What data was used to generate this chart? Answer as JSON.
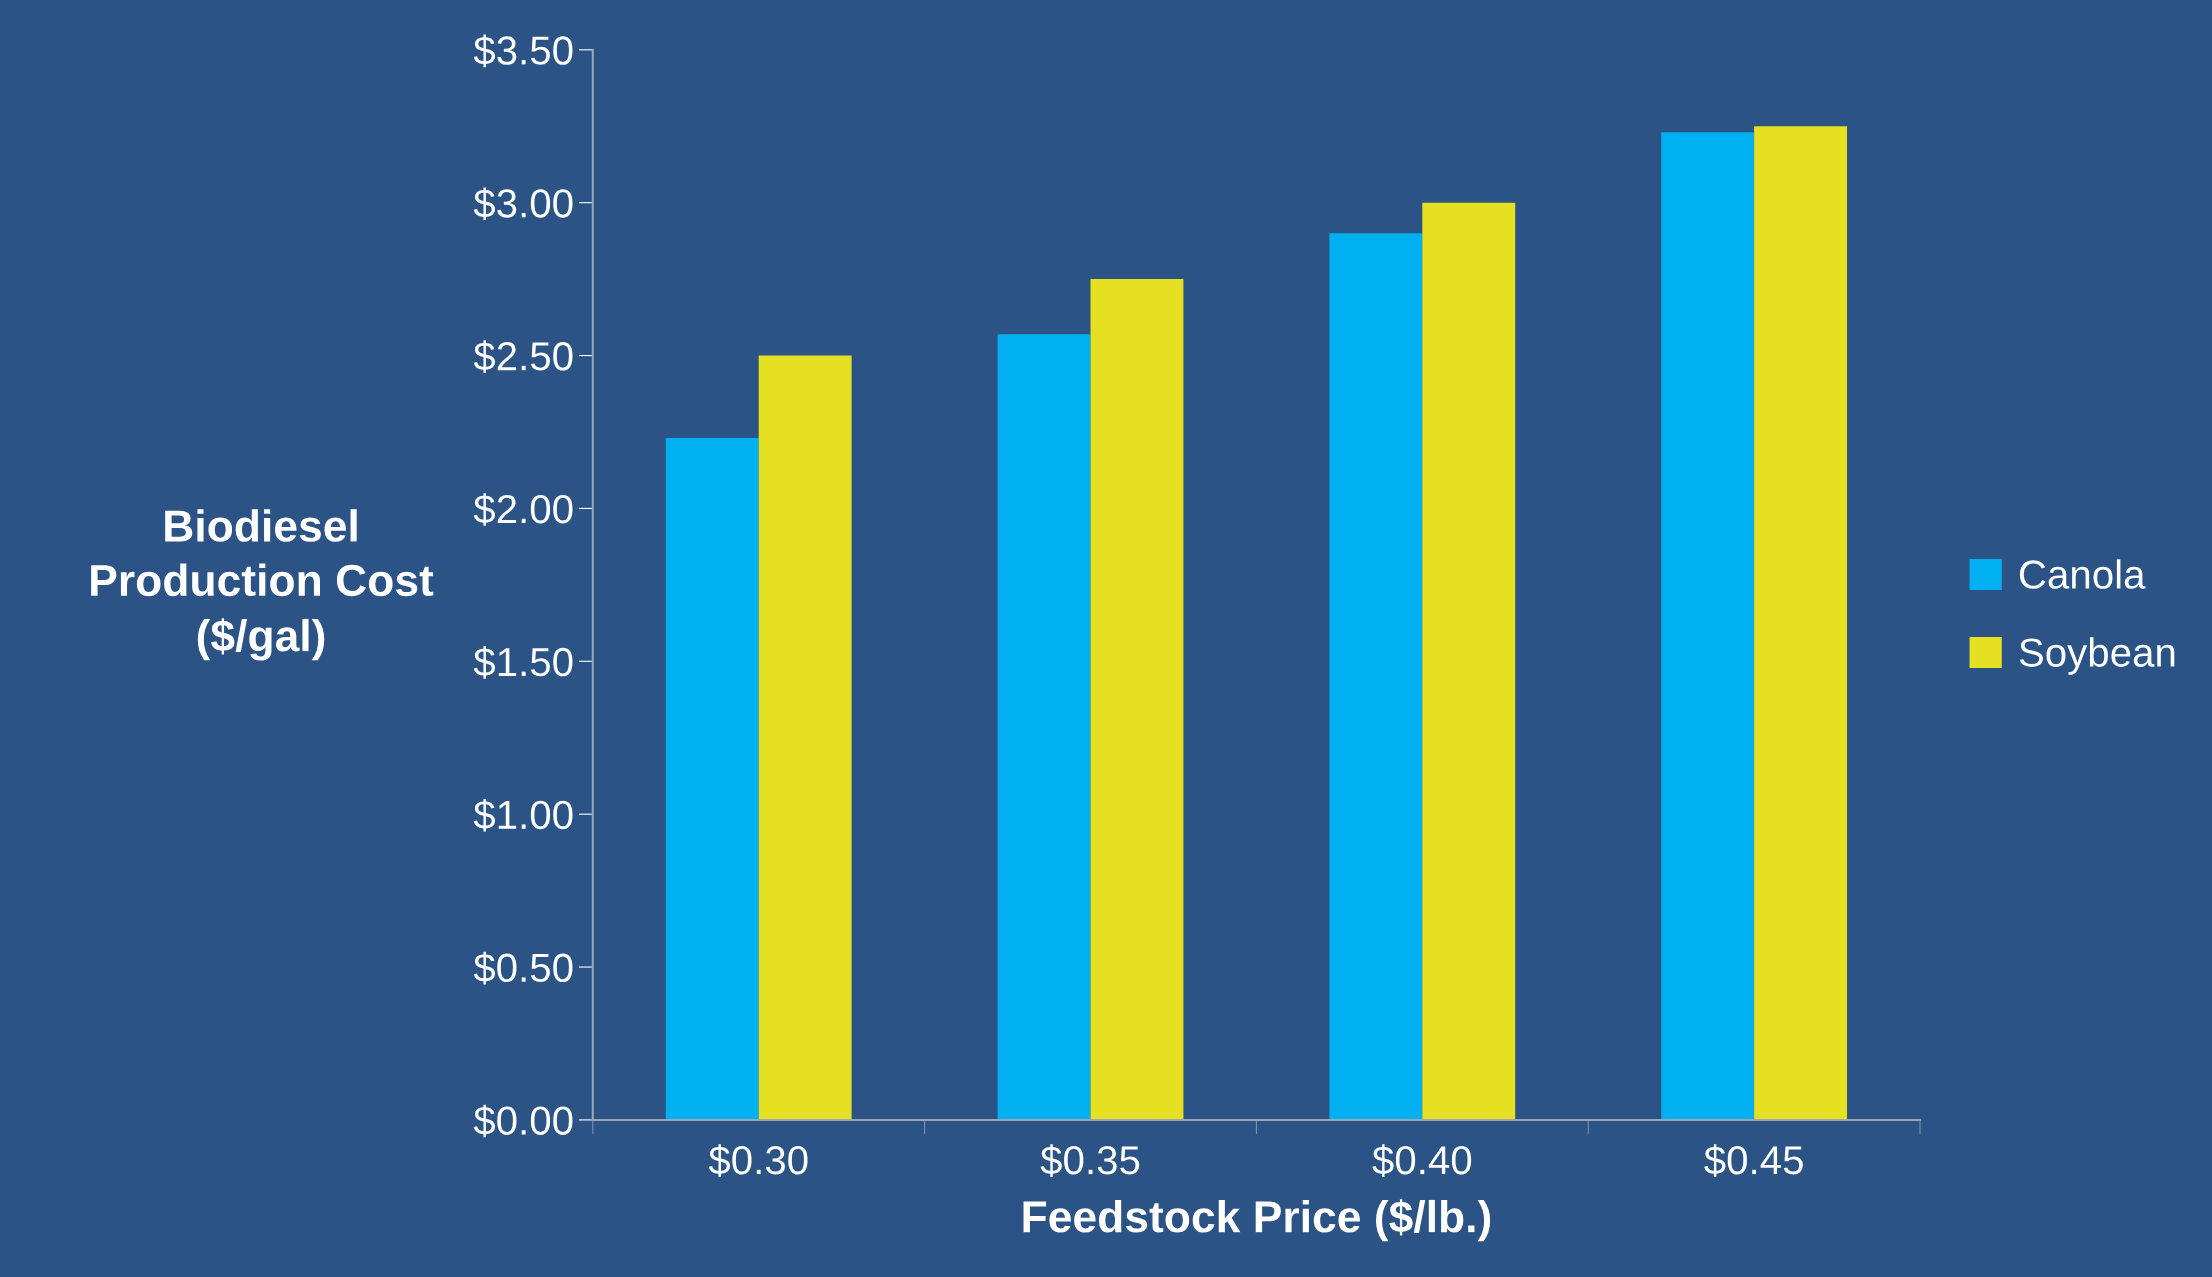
{
  "chart_data": {
    "type": "bar",
    "xlabel": "Feedstock Price ($/lb.)",
    "ylabel": "Biodiesel\nProduction Cost\n($/gal)",
    "categories": [
      "$0.30",
      "$0.35",
      "$0.40",
      "$0.45"
    ],
    "series": [
      {
        "name": "Canola",
        "color": "#00b0f0",
        "values": [
          2.23,
          2.57,
          2.9,
          3.23
        ]
      },
      {
        "name": "Soybean",
        "color": "#e6e022",
        "values": [
          2.5,
          2.75,
          3.0,
          3.25
        ]
      }
    ],
    "ylim": [
      0,
      3.5
    ],
    "yticks": [
      {
        "value": 0,
        "label": "$0.00"
      },
      {
        "value": 0.5,
        "label": "$0.50"
      },
      {
        "value": 1,
        "label": "$1.00"
      },
      {
        "value": 1.5,
        "label": "$1.50"
      },
      {
        "value": 2,
        "label": "$2.00"
      },
      {
        "value": 2.5,
        "label": "$2.50"
      },
      {
        "value": 3,
        "label": "$3.00"
      },
      {
        "value": 3.5,
        "label": "$3.50"
      }
    ],
    "grid": false,
    "legend": "right"
  }
}
